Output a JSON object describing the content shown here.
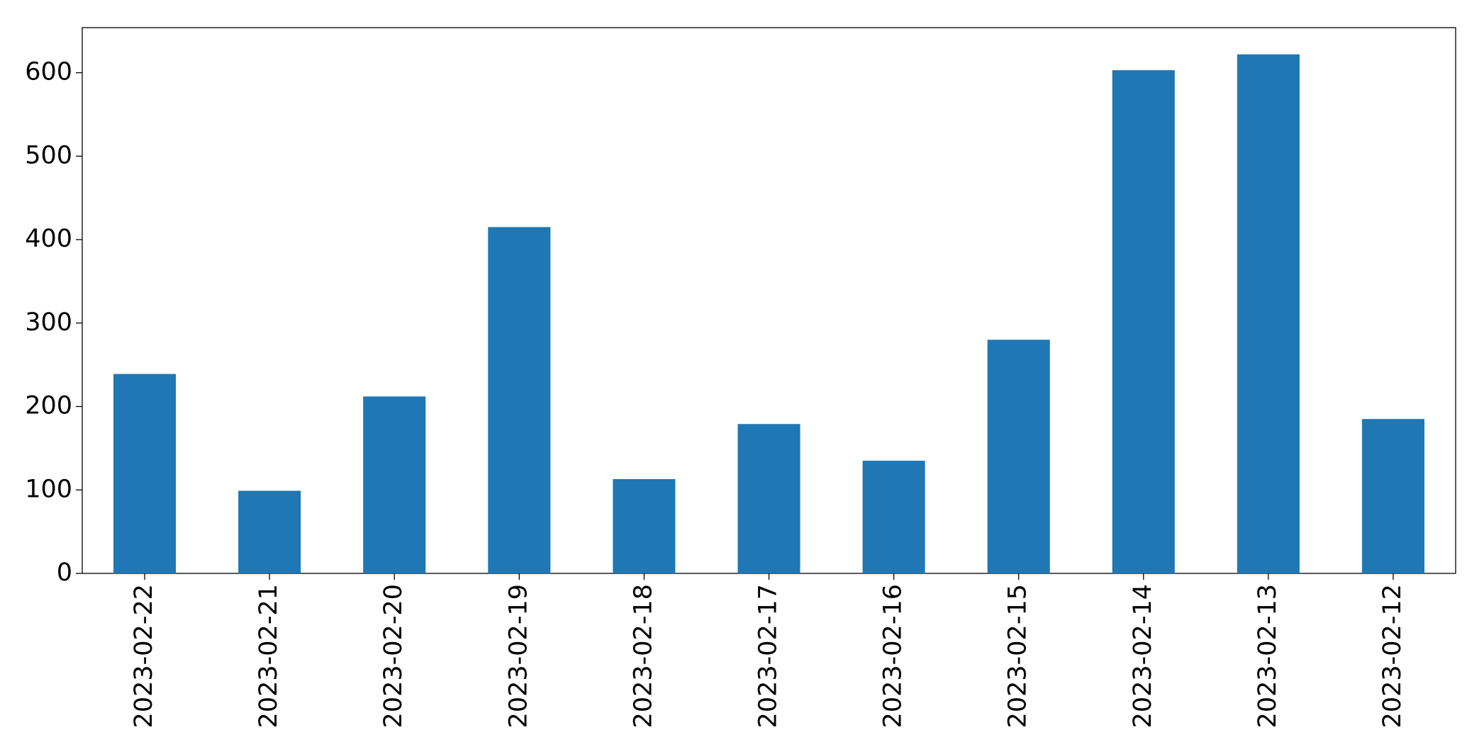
{
  "chart_data": {
    "type": "bar",
    "categories": [
      "2023-02-22",
      "2023-02-21",
      "2023-02-20",
      "2023-02-19",
      "2023-02-18",
      "2023-02-17",
      "2023-02-16",
      "2023-02-15",
      "2023-02-14",
      "2023-02-13",
      "2023-02-12"
    ],
    "values": [
      239,
      99,
      212,
      415,
      113,
      179,
      135,
      280,
      603,
      622,
      185
    ],
    "color": "#1f77b4",
    "ylim": [
      0,
      654
    ],
    "yticks": [
      0,
      100,
      200,
      300,
      400,
      500,
      600
    ],
    "grid": false
  }
}
